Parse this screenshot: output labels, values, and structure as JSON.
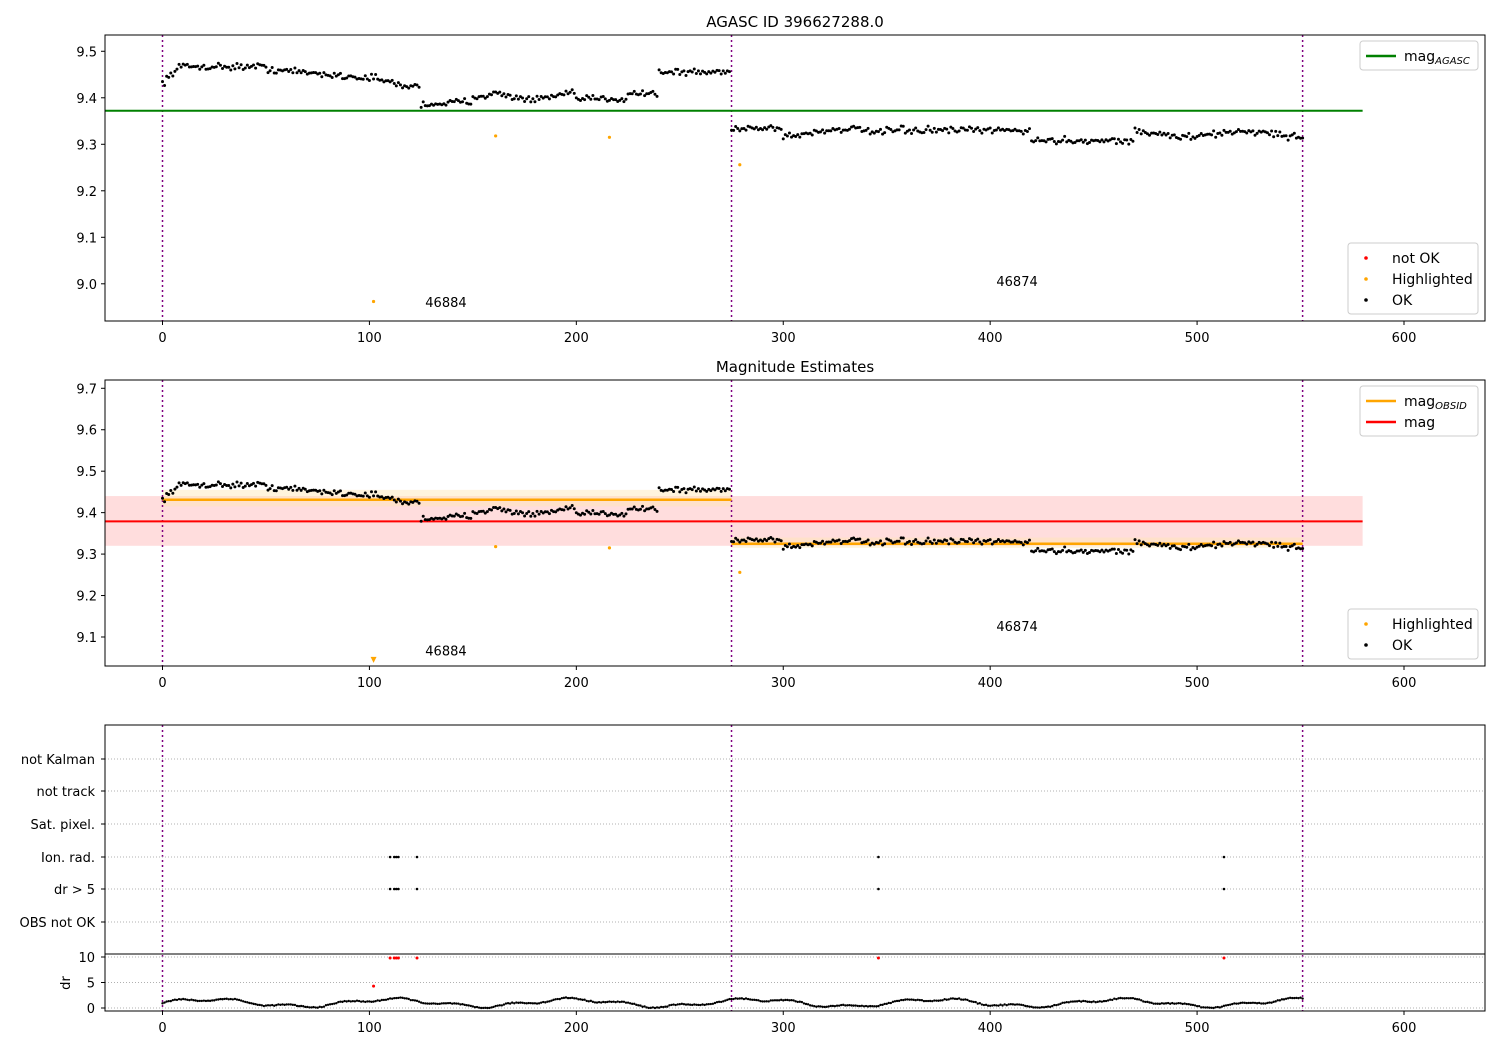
{
  "chart_data": [
    {
      "type": "scatter",
      "title": "AGASC ID 396627288.0",
      "xlim": [
        -28,
        640
      ],
      "ylim": [
        8.92,
        9.535
      ],
      "xticks": [
        "0",
        "100",
        "200",
        "300",
        "400",
        "500",
        "600"
      ],
      "yticks": [
        "9.0",
        "9.1",
        "9.2",
        "9.3",
        "9.4",
        "9.5"
      ],
      "obs_boundaries": [
        0,
        275,
        551
      ],
      "obs_labels": [
        {
          "text": "46884",
          "x": 137,
          "y": 8.95
        },
        {
          "text": "46874",
          "x": 413,
          "y": 8.995
        }
      ],
      "lines": [
        {
          "name": "mag_AGASC",
          "color": "#008000",
          "x": [
            -28,
            580
          ],
          "y": [
            9.372,
            9.372
          ]
        }
      ],
      "highlighted": {
        "x": [
          102,
          161,
          216,
          279
        ],
        "y": [
          8.962,
          9.318,
          9.315,
          9.256
        ]
      },
      "legends": [
        {
          "position": "upper right",
          "entries": [
            {
              "label": "mag",
              "sub": "AGASC",
              "color": "#008000",
              "kind": "line"
            }
          ]
        },
        {
          "position": "lower right",
          "entries": [
            {
              "label": "not OK",
              "color": "#ff0000",
              "kind": "marker"
            },
            {
              "label": "Highlighted",
              "color": "#ffa500",
              "kind": "marker"
            },
            {
              "label": "OK",
              "color": "#000000",
              "kind": "marker"
            }
          ]
        }
      ]
    },
    {
      "type": "scatter",
      "title": "Magnitude Estimates",
      "xlim": [
        -28,
        640
      ],
      "ylim": [
        9.03,
        9.72
      ],
      "xticks": [
        "0",
        "100",
        "200",
        "300",
        "400",
        "500",
        "600"
      ],
      "yticks": [
        "9.1",
        "9.2",
        "9.3",
        "9.4",
        "9.5",
        "9.6",
        "9.7"
      ],
      "obs_boundaries": [
        0,
        275,
        551
      ],
      "obs_labels": [
        {
          "text": "46884",
          "x": 137,
          "y": 9.055
        },
        {
          "text": "46874",
          "x": 413,
          "y": 9.115
        }
      ],
      "bands": [
        {
          "color": "#ffb3b3",
          "x": [
            -28,
            580
          ],
          "y": [
            9.32,
            9.44
          ]
        },
        {
          "color": "#ffe7b3",
          "x": [
            0,
            275
          ],
          "y": [
            9.415,
            9.455
          ]
        },
        {
          "color": "#ffe7b3",
          "x": [
            275,
            551
          ],
          "y": [
            9.315,
            9.34
          ]
        }
      ],
      "lines": [
        {
          "name": "mag_OBSID",
          "color": "#ffa500",
          "segments": [
            {
              "x": [
                0,
                275
              ],
              "y": 9.431
            },
            {
              "x": [
                275,
                551
              ],
              "y": 9.325
            }
          ]
        },
        {
          "name": "mag",
          "color": "#ff0000",
          "x": [
            -28,
            580
          ],
          "y": [
            9.379,
            9.379
          ]
        }
      ],
      "highlighted": {
        "x": [
          102,
          161,
          216,
          279
        ],
        "y": [
          9.04,
          9.318,
          9.315,
          9.256
        ]
      },
      "legends": [
        {
          "position": "upper right",
          "entries": [
            {
              "label": "mag",
              "sub": "OBSID",
              "color": "#ffa500",
              "kind": "line"
            },
            {
              "label": "mag",
              "color": "#ff0000",
              "kind": "line"
            }
          ]
        },
        {
          "position": "lower right",
          "entries": [
            {
              "label": "Highlighted",
              "color": "#ffa500",
              "kind": "marker"
            },
            {
              "label": "OK",
              "color": "#000000",
              "kind": "marker"
            }
          ]
        }
      ]
    },
    {
      "type": "scatter",
      "title": "",
      "xlim": [
        -28,
        640
      ],
      "flag_categories": [
        "not Kalman",
        "not track",
        "Sat. pixel.",
        "Ion. rad.",
        "dr > 5",
        "OBS not OK"
      ],
      "flag_points": [
        {
          "category": "Ion. rad.",
          "x": [
            110,
            112,
            113,
            114,
            123,
            346,
            513
          ]
        },
        {
          "category": "dr > 5",
          "x": [
            110,
            112,
            113,
            114,
            123,
            346,
            513
          ]
        }
      ],
      "dr_panel": {
        "ylabel": "dr",
        "yticks": [
          "0",
          "5",
          "10"
        ],
        "ylim": [
          -1,
          12
        ],
        "x_ticks": [
          "0",
          "100",
          "200",
          "300",
          "400",
          "500",
          "600"
        ],
        "red_points": {
          "x": [
            102,
            110,
            112,
            113,
            114,
            123,
            346,
            513
          ],
          "y": [
            4.3,
            9.8,
            9.8,
            9.8,
            9.8,
            9.8,
            9.8,
            9.8
          ]
        }
      }
    }
  ]
}
